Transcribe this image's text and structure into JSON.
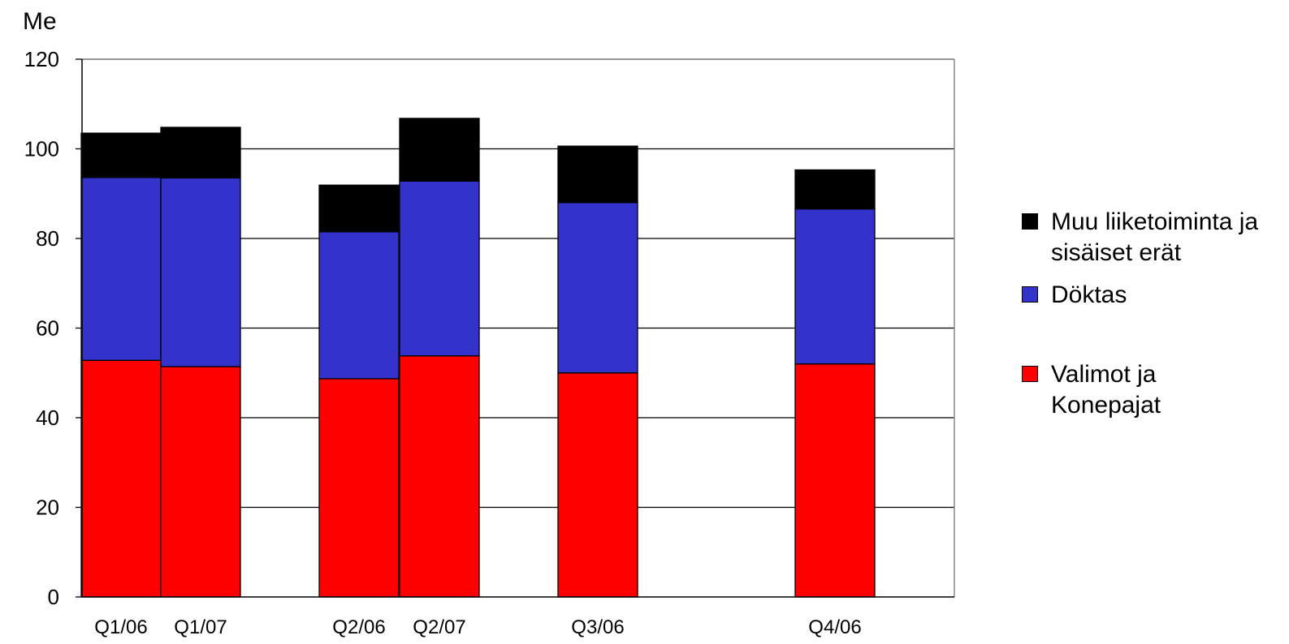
{
  "chart_data": {
    "type": "bar",
    "stacked": true,
    "ylabel": "Me",
    "ylim": [
      0,
      120
    ],
    "yticks": [
      0,
      20,
      40,
      60,
      80,
      100,
      120
    ],
    "grid": true,
    "legend_position": "right",
    "groups": [
      {
        "bars": [
          "Q1/06",
          "Q1/07"
        ]
      },
      {
        "bars": [
          "Q2/06",
          "Q2/07"
        ]
      },
      {
        "bars": [
          "Q3/06"
        ]
      },
      {
        "bars": [
          "Q4/06"
        ]
      }
    ],
    "categories": [
      "Q1/06",
      "Q1/07",
      "Q2/06",
      "Q2/07",
      "Q3/06",
      "Q4/06"
    ],
    "series": [
      {
        "name": "Valimot ja Konepajat",
        "color": "#ff0000",
        "values": [
          52.8,
          51.4,
          48.7,
          53.8,
          50.0,
          52.0
        ]
      },
      {
        "name": "Döktas",
        "color": "#3333cc",
        "values": [
          40.8,
          42.1,
          32.8,
          39.0,
          38.0,
          34.6
        ]
      },
      {
        "name": "Muu liiketoiminta ja sisäiset erät",
        "color": "#000000",
        "values": [
          9.9,
          11.3,
          10.4,
          14.0,
          12.6,
          8.7
        ]
      }
    ]
  },
  "legend": {
    "items": [
      {
        "label": "Muu liiketoiminta ja sisäiset erät",
        "color": "#000000"
      },
      {
        "label": "Döktas",
        "color": "#3333cc"
      },
      {
        "label": "Valimot ja Konepajat",
        "color": "#ff0000"
      }
    ]
  }
}
